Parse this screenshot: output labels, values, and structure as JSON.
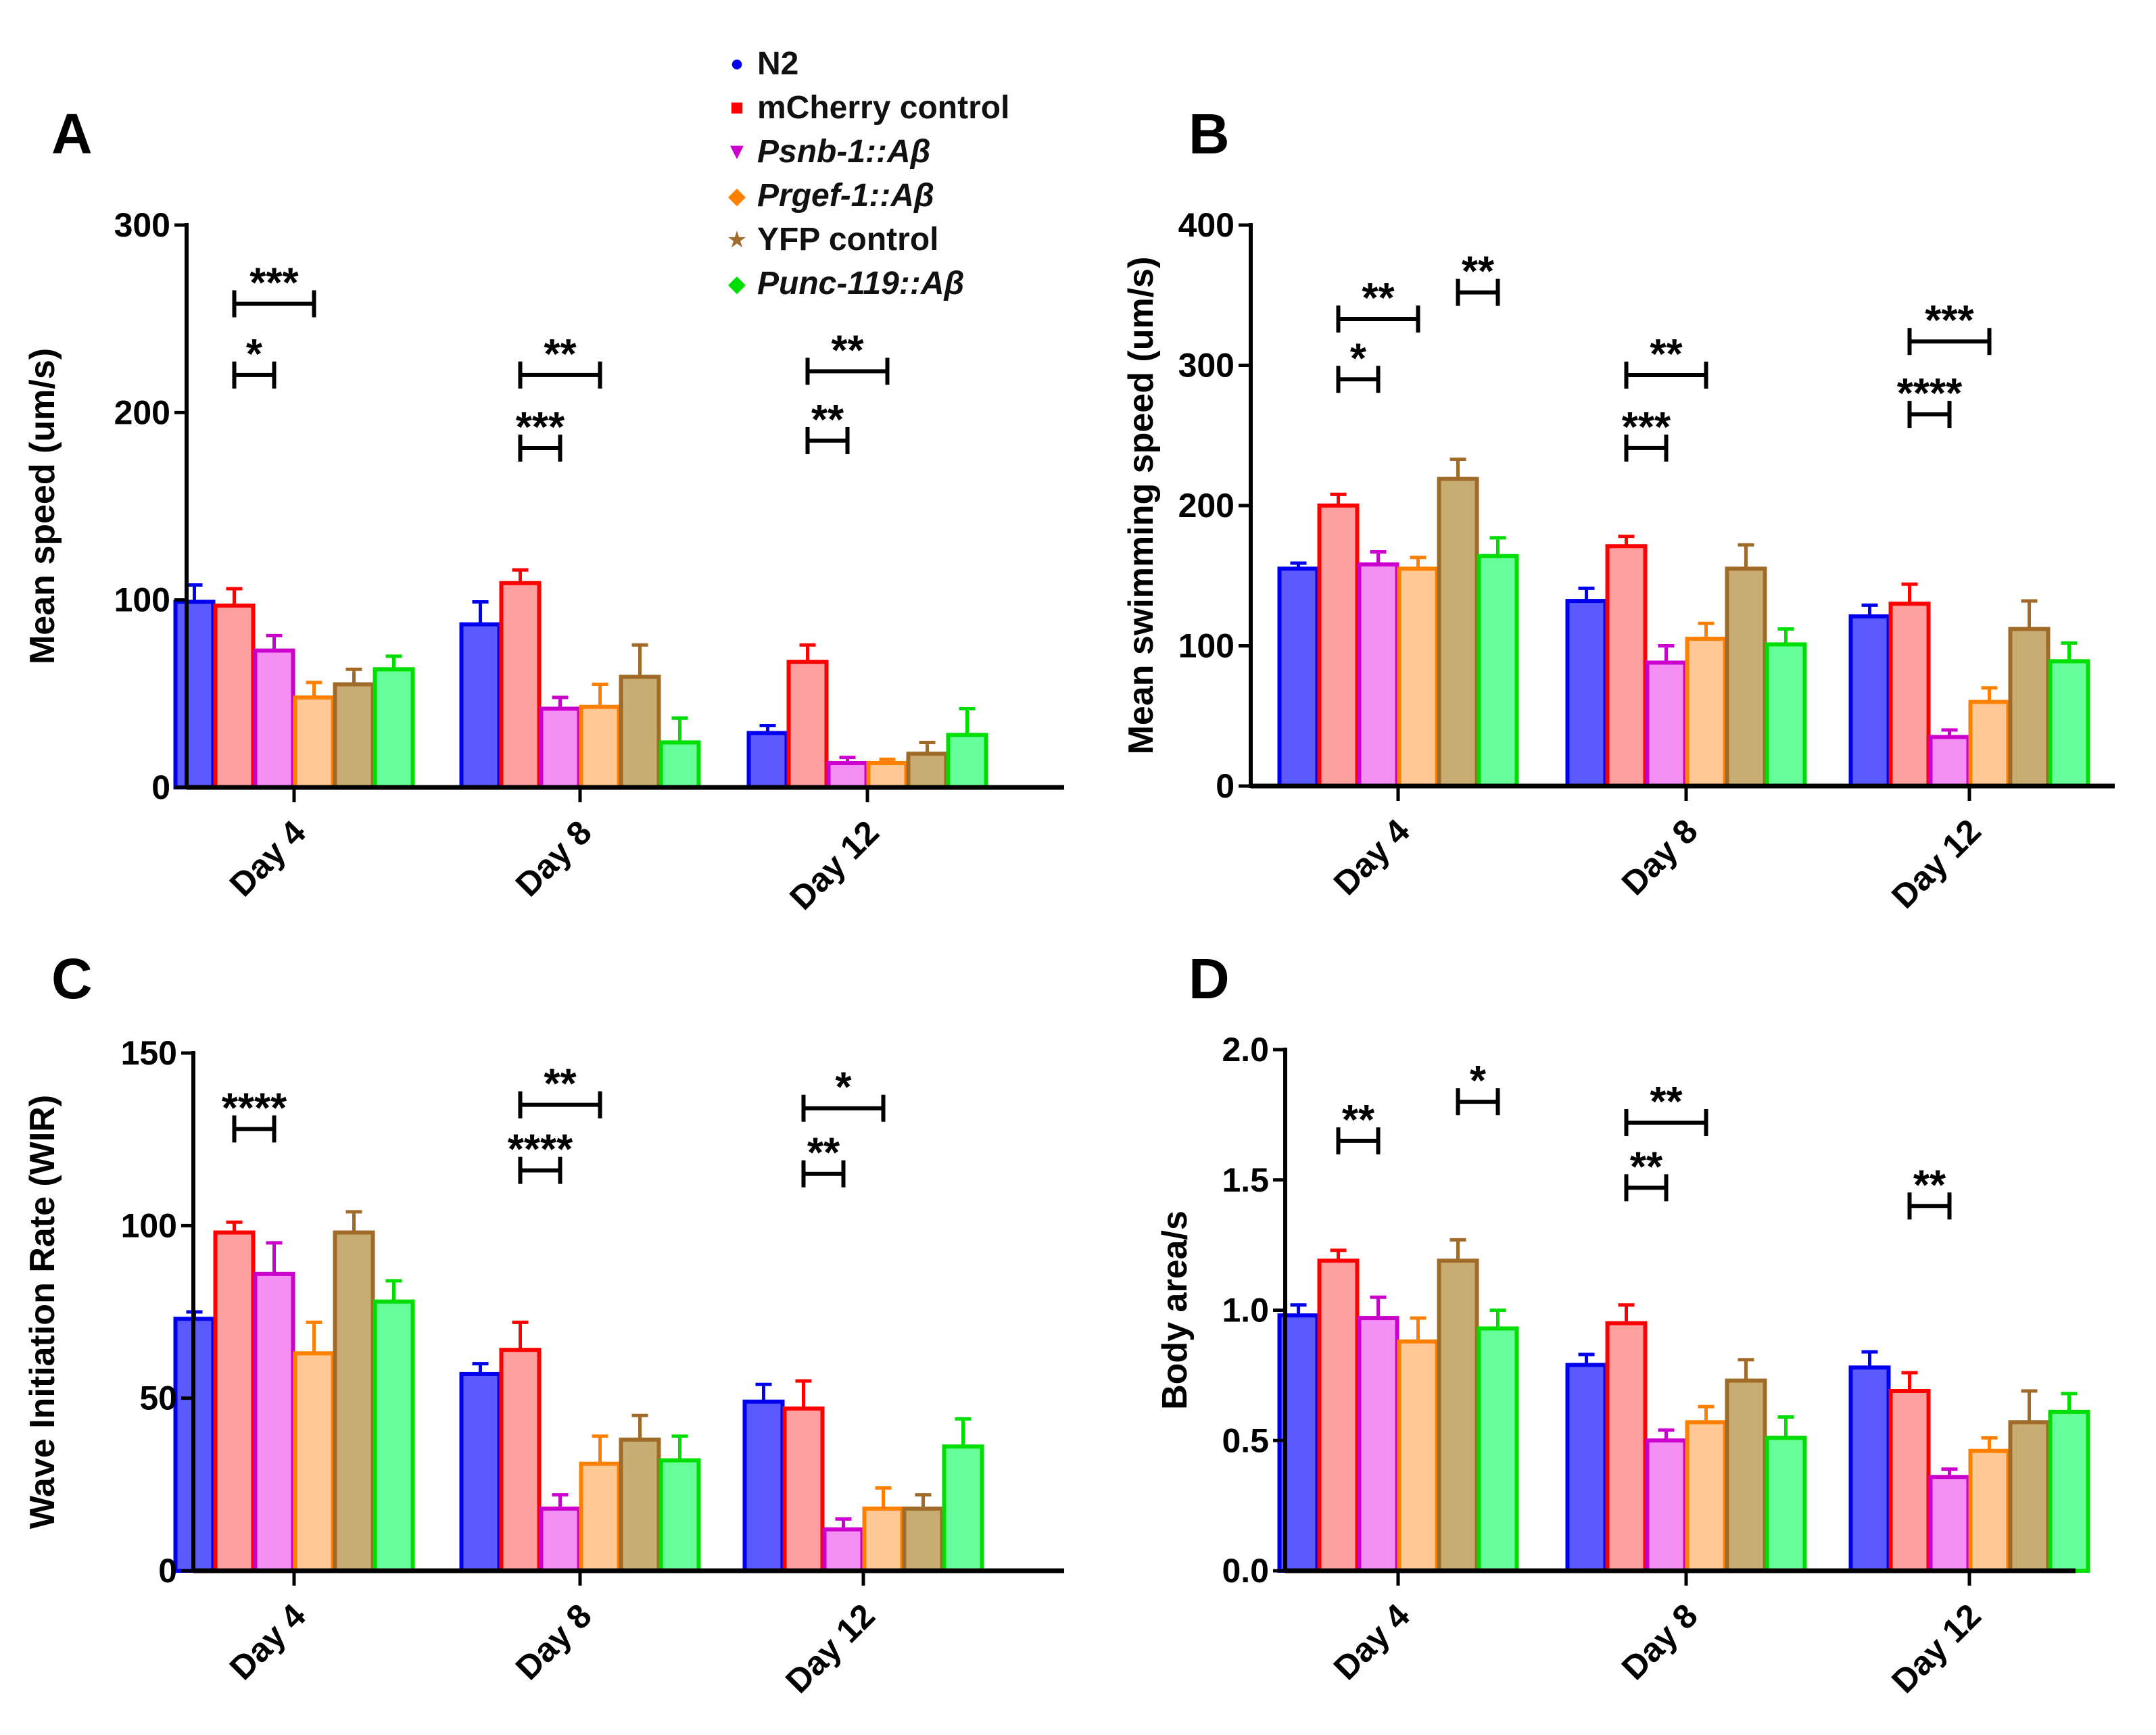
{
  "legend": [
    {
      "label": "N2",
      "marker": "circle",
      "color": "#0000ee",
      "fill": "#5a5aff",
      "italic": false
    },
    {
      "label": "mCherry control",
      "marker": "square",
      "color": "#ff0000",
      "fill": "#ffa0a0",
      "italic": false
    },
    {
      "label": "Psnb-1::Aβ",
      "marker": "triangle-down",
      "color": "#cc00cc",
      "fill": "#f490f4",
      "italic": true
    },
    {
      "label": "Prgef-1::Aβ",
      "marker": "diamond",
      "color": "#ff8000",
      "fill": "#ffc894",
      "italic": true
    },
    {
      "label": "YFP control",
      "marker": "star",
      "color": "#a06a28",
      "fill": "#c8ad72",
      "italic": false
    },
    {
      "label": "Punc-119::Aβ",
      "marker": "diamond",
      "color": "#00dd00",
      "fill": "#66ff99",
      "italic": true
    }
  ],
  "chart_data": [
    {
      "panel": "A",
      "type": "bar",
      "ylabel": "Mean speed (um/s)",
      "ylim": [
        0,
        300
      ],
      "yticks": [
        "0",
        "100",
        "200",
        "300"
      ],
      "categories": [
        "Day 4",
        "Day 8",
        "Day 12"
      ],
      "series": [
        {
          "name": "N2",
          "values": [
            99,
            87,
            29
          ],
          "sem": [
            9,
            12,
            4
          ]
        },
        {
          "name": "mCherry control",
          "values": [
            97,
            109,
            67
          ],
          "sem": [
            9,
            7,
            9
          ]
        },
        {
          "name": "Psnb-1::Aβ",
          "values": [
            73,
            42,
            13
          ],
          "sem": [
            8,
            6,
            3
          ]
        },
        {
          "name": "Prgef-1::Aβ",
          "values": [
            48,
            43,
            13
          ],
          "sem": [
            8,
            12,
            2
          ]
        },
        {
          "name": "YFP control",
          "values": [
            55,
            59,
            18
          ],
          "sem": [
            8,
            17,
            6
          ]
        },
        {
          "name": "Punc-119::Aβ",
          "values": [
            63,
            24,
            28
          ],
          "sem": [
            7,
            13,
            14
          ]
        }
      ],
      "significance": [
        {
          "day": 0,
          "from": 1,
          "to": 2,
          "y": 220,
          "label": "*"
        },
        {
          "day": 0,
          "from": 1,
          "to": 3,
          "y": 258,
          "label": "***"
        },
        {
          "day": 1,
          "from": 1,
          "to": 2,
          "y": 181,
          "label": "***"
        },
        {
          "day": 1,
          "from": 1,
          "to": 3,
          "y": 220,
          "label": "**"
        },
        {
          "day": 2,
          "from": 1,
          "to": 2,
          "y": 185,
          "label": "**"
        },
        {
          "day": 2,
          "from": 1,
          "to": 3,
          "y": 222,
          "label": "**"
        }
      ]
    },
    {
      "panel": "B",
      "type": "bar",
      "ylabel": "Mean swimming speed (um/s)",
      "ylim": [
        0,
        400
      ],
      "yticks": [
        "0",
        "100",
        "200",
        "300",
        "400"
      ],
      "categories": [
        "Day 4",
        "Day 8",
        "Day 12"
      ],
      "series": [
        {
          "name": "N2",
          "values": [
            155,
            132,
            121
          ],
          "sem": [
            4,
            9,
            8
          ]
        },
        {
          "name": "mCherry control",
          "values": [
            200,
            171,
            130
          ],
          "sem": [
            8,
            7,
            14
          ]
        },
        {
          "name": "Psnb-1::Aβ",
          "values": [
            158,
            88,
            35
          ],
          "sem": [
            9,
            12,
            5
          ]
        },
        {
          "name": "Prgef-1::Aβ",
          "values": [
            155,
            105,
            60
          ],
          "sem": [
            8,
            11,
            10
          ]
        },
        {
          "name": "YFP control",
          "values": [
            219,
            155,
            112
          ],
          "sem": [
            14,
            17,
            20
          ]
        },
        {
          "name": "Punc-119::Aβ",
          "values": [
            164,
            101,
            89
          ],
          "sem": [
            13,
            11,
            13
          ]
        }
      ],
      "significance": [
        {
          "day": 0,
          "from": 1,
          "to": 2,
          "y": 290,
          "label": "*"
        },
        {
          "day": 0,
          "from": 1,
          "to": 3,
          "y": 333,
          "label": "**"
        },
        {
          "day": 0,
          "from": 4,
          "to": 5,
          "y": 352,
          "label": "**"
        },
        {
          "day": 1,
          "from": 1,
          "to": 2,
          "y": 241,
          "label": "***"
        },
        {
          "day": 1,
          "from": 1,
          "to": 3,
          "y": 293,
          "label": "**"
        },
        {
          "day": 2,
          "from": 1,
          "to": 2,
          "y": 265,
          "label": "****"
        },
        {
          "day": 2,
          "from": 1,
          "to": 3,
          "y": 317,
          "label": "***"
        }
      ]
    },
    {
      "panel": "C",
      "type": "bar",
      "ylabel": "Wave Initiation Rate (WIR)",
      "ylim": [
        0,
        150
      ],
      "yticks": [
        "0",
        "50",
        "100",
        "150"
      ],
      "categories": [
        "Day 4",
        "Day 8",
        "Day 12"
      ],
      "series": [
        {
          "name": "N2",
          "values": [
            73,
            57,
            49
          ],
          "sem": [
            2,
            3,
            5
          ]
        },
        {
          "name": "mCherry control",
          "values": [
            98,
            64,
            47
          ],
          "sem": [
            3,
            8,
            8
          ]
        },
        {
          "name": "Psnb-1::Aβ",
          "values": [
            86,
            18,
            12
          ],
          "sem": [
            9,
            4,
            3
          ]
        },
        {
          "name": "Prgef-1::Aβ",
          "values": [
            63,
            31,
            18
          ],
          "sem": [
            9,
            8,
            6
          ]
        },
        {
          "name": "YFP control",
          "values": [
            98,
            38,
            18
          ],
          "sem": [
            6,
            7,
            4
          ]
        },
        {
          "name": "Punc-119::Aβ",
          "values": [
            78,
            32,
            36
          ],
          "sem": [
            6,
            7,
            8
          ]
        }
      ],
      "significance": [
        {
          "day": 0,
          "from": 1,
          "to": 2,
          "y": 128,
          "label": "****"
        },
        {
          "day": 1,
          "from": 1,
          "to": 2,
          "y": 116,
          "label": "****"
        },
        {
          "day": 1,
          "from": 1,
          "to": 3,
          "y": 135,
          "label": "**"
        },
        {
          "day": 2,
          "from": 1,
          "to": 2,
          "y": 115,
          "label": "**"
        },
        {
          "day": 2,
          "from": 1,
          "to": 3,
          "y": 134,
          "label": "*"
        }
      ]
    },
    {
      "panel": "D",
      "type": "bar",
      "ylabel": "Body area/s",
      "ylim": [
        0,
        2.0
      ],
      "yticks": [
        "0.0",
        "0.5",
        "1.0",
        "1.5",
        "2.0"
      ],
      "categories": [
        "Day 4",
        "Day 8",
        "Day 12"
      ],
      "series": [
        {
          "name": "N2",
          "values": [
            0.98,
            0.79,
            0.78
          ],
          "sem": [
            0.04,
            0.04,
            0.06
          ]
        },
        {
          "name": "mCherry control",
          "values": [
            1.19,
            0.95,
            0.69
          ],
          "sem": [
            0.04,
            0.07,
            0.07
          ]
        },
        {
          "name": "Psnb-1::Aβ",
          "values": [
            0.97,
            0.5,
            0.36
          ],
          "sem": [
            0.08,
            0.04,
            0.03
          ]
        },
        {
          "name": "Prgef-1::Aβ",
          "values": [
            0.88,
            0.57,
            0.46
          ],
          "sem": [
            0.09,
            0.06,
            0.05
          ]
        },
        {
          "name": "YFP control",
          "values": [
            1.19,
            0.73,
            0.57
          ],
          "sem": [
            0.08,
            0.08,
            0.12
          ]
        },
        {
          "name": "Punc-119::Aβ",
          "values": [
            0.93,
            0.51,
            0.61
          ],
          "sem": [
            0.07,
            0.08,
            0.07
          ]
        }
      ],
      "significance": [
        {
          "day": 0,
          "from": 1,
          "to": 2,
          "y": 1.65,
          "label": "**"
        },
        {
          "day": 0,
          "from": 4,
          "to": 5,
          "y": 1.8,
          "label": "*"
        },
        {
          "day": 1,
          "from": 1,
          "to": 2,
          "y": 1.47,
          "label": "**"
        },
        {
          "day": 1,
          "from": 1,
          "to": 3,
          "y": 1.72,
          "label": "**"
        },
        {
          "day": 2,
          "from": 1,
          "to": 2,
          "y": 1.4,
          "label": "**"
        }
      ]
    }
  ]
}
